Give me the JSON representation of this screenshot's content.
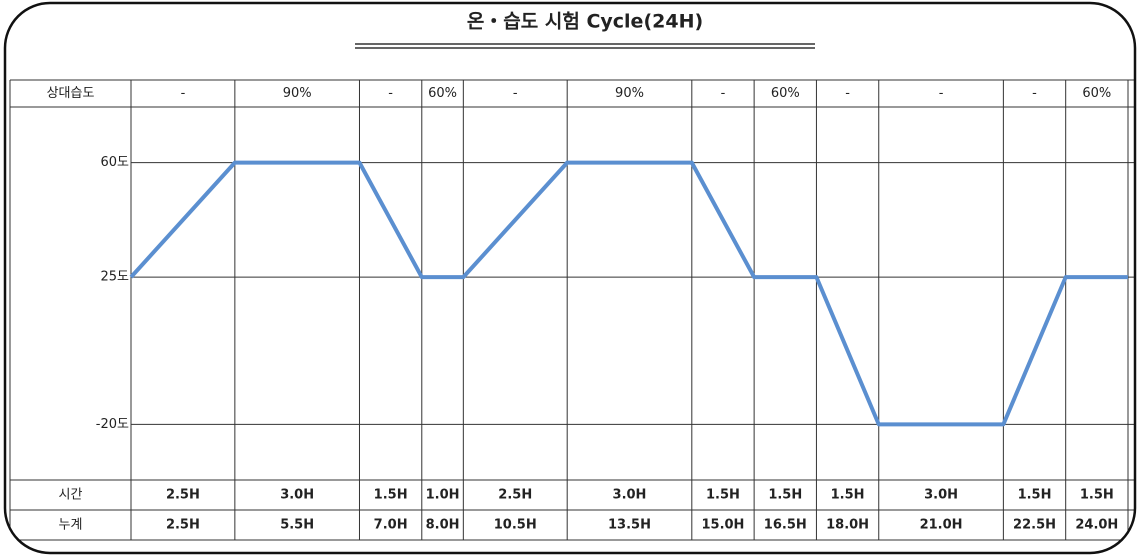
{
  "chart_data": {
    "type": "line",
    "title": "온・습도 시험 Cycle(24H)",
    "x": [
      0,
      2.5,
      5.5,
      7,
      8,
      10.5,
      13.5,
      15,
      16.5,
      18,
      21,
      22.5,
      24
    ],
    "values": [
      25,
      60,
      60,
      25,
      25,
      60,
      60,
      25,
      25,
      -20,
      -20,
      25,
      25
    ],
    "color": "#5b8fd0",
    "xlim": [
      0,
      24
    ],
    "ylim": [
      -37,
      77
    ],
    "yticks": [
      {
        "value": 60,
        "label": "60도"
      },
      {
        "value": 25,
        "label": "25도"
      },
      {
        "value": -20,
        "label": "-20도"
      }
    ],
    "grid": true,
    "humidity": {
      "label": "상대습도",
      "cells": [
        "-",
        "90%",
        "-",
        "60%",
        "-",
        "90%",
        "-",
        "60%",
        "-",
        "-",
        "-",
        "60%"
      ]
    },
    "time": {
      "label": "시간",
      "cells": [
        "2.5H",
        "3.0H",
        "1.5H",
        "1.0H",
        "2.5H",
        "3.0H",
        "1.5H",
        "1.5H",
        "1.5H",
        "3.0H",
        "1.5H",
        "1.5H"
      ]
    },
    "cumulative": {
      "label": "누계",
      "cells": [
        "2.5H",
        "5.5H",
        "7.0H",
        "8.0H",
        "10.5H",
        "13.5H",
        "15.0H",
        "16.5H",
        "18.0H",
        "21.0H",
        "22.5H",
        "24.0H"
      ]
    }
  }
}
